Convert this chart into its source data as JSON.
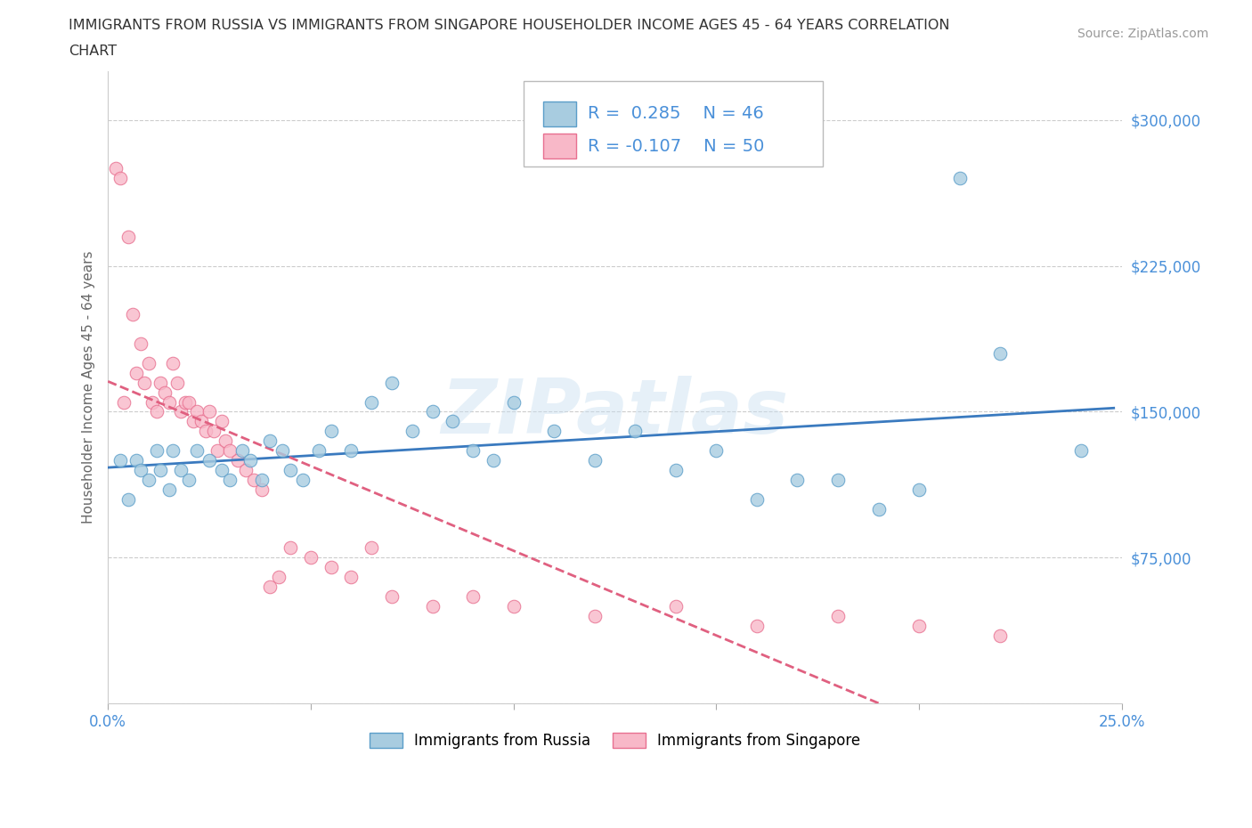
{
  "title_line1": "IMMIGRANTS FROM RUSSIA VS IMMIGRANTS FROM SINGAPORE HOUSEHOLDER INCOME AGES 45 - 64 YEARS CORRELATION",
  "title_line2": "CHART",
  "source_text": "Source: ZipAtlas.com",
  "ylabel": "Householder Income Ages 45 - 64 years",
  "xlim": [
    0.0,
    0.25
  ],
  "ylim": [
    0,
    325000
  ],
  "xticks": [
    0.0,
    0.05,
    0.1,
    0.15,
    0.2,
    0.25
  ],
  "xtick_labels": [
    "0.0%",
    "",
    "",
    "",
    "",
    "25.0%"
  ],
  "ytick_vals": [
    0,
    75000,
    150000,
    225000,
    300000
  ],
  "ytick_labels": [
    "",
    "$75,000",
    "$150,000",
    "$225,000",
    "$300,000"
  ],
  "russia_color": "#a8cce0",
  "russia_edge": "#5b9ec9",
  "singapore_color": "#f8b8c8",
  "singapore_edge": "#e87090",
  "russia_trend_color": "#3a7abf",
  "singapore_trend_color": "#e06080",
  "R_russia": 0.285,
  "N_russia": 46,
  "R_singapore": -0.107,
  "N_singapore": 50,
  "watermark": "ZIPatlas",
  "accent_color": "#4a90d9",
  "russia_scatter_x": [
    0.003,
    0.005,
    0.007,
    0.008,
    0.01,
    0.012,
    0.013,
    0.015,
    0.016,
    0.018,
    0.02,
    0.022,
    0.025,
    0.028,
    0.03,
    0.033,
    0.035,
    0.038,
    0.04,
    0.043,
    0.045,
    0.048,
    0.052,
    0.055,
    0.06,
    0.065,
    0.07,
    0.075,
    0.08,
    0.085,
    0.09,
    0.095,
    0.1,
    0.11,
    0.12,
    0.13,
    0.14,
    0.15,
    0.16,
    0.17,
    0.18,
    0.19,
    0.2,
    0.21,
    0.22,
    0.24
  ],
  "russia_scatter_y": [
    125000,
    105000,
    125000,
    120000,
    115000,
    130000,
    120000,
    110000,
    130000,
    120000,
    115000,
    130000,
    125000,
    120000,
    115000,
    130000,
    125000,
    115000,
    135000,
    130000,
    120000,
    115000,
    130000,
    140000,
    130000,
    155000,
    165000,
    140000,
    150000,
    145000,
    130000,
    125000,
    155000,
    140000,
    125000,
    140000,
    120000,
    130000,
    105000,
    115000,
    115000,
    100000,
    110000,
    270000,
    180000,
    130000
  ],
  "singapore_scatter_x": [
    0.002,
    0.003,
    0.004,
    0.005,
    0.006,
    0.007,
    0.008,
    0.009,
    0.01,
    0.011,
    0.012,
    0.013,
    0.014,
    0.015,
    0.016,
    0.017,
    0.018,
    0.019,
    0.02,
    0.021,
    0.022,
    0.023,
    0.024,
    0.025,
    0.026,
    0.027,
    0.028,
    0.029,
    0.03,
    0.032,
    0.034,
    0.036,
    0.038,
    0.04,
    0.042,
    0.045,
    0.05,
    0.055,
    0.06,
    0.065,
    0.07,
    0.08,
    0.09,
    0.1,
    0.12,
    0.14,
    0.16,
    0.18,
    0.2,
    0.22
  ],
  "singapore_scatter_y": [
    275000,
    270000,
    155000,
    240000,
    200000,
    170000,
    185000,
    165000,
    175000,
    155000,
    150000,
    165000,
    160000,
    155000,
    175000,
    165000,
    150000,
    155000,
    155000,
    145000,
    150000,
    145000,
    140000,
    150000,
    140000,
    130000,
    145000,
    135000,
    130000,
    125000,
    120000,
    115000,
    110000,
    60000,
    65000,
    80000,
    75000,
    70000,
    65000,
    80000,
    55000,
    50000,
    55000,
    50000,
    45000,
    50000,
    40000,
    45000,
    40000,
    35000
  ]
}
